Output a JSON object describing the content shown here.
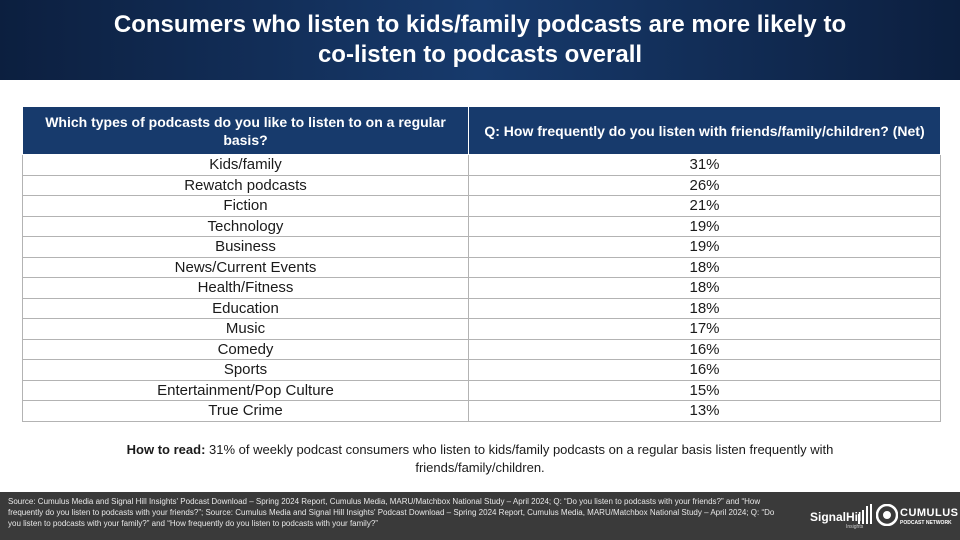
{
  "header": {
    "title": "Consumers who listen to kids/family podcasts are more likely to co-listen to podcasts overall"
  },
  "table": {
    "headers": [
      "Which types of podcasts do you like to listen to on a regular basis?",
      "Q: How frequently do you listen with friends/family/children? (Net)"
    ],
    "rows": [
      [
        "Kids/family",
        "31%"
      ],
      [
        "Rewatch podcasts",
        "26%"
      ],
      [
        "Fiction",
        "21%"
      ],
      [
        "Technology",
        "19%"
      ],
      [
        "Business",
        "19%"
      ],
      [
        "News/Current Events",
        "18%"
      ],
      [
        "Health/Fitness",
        "18%"
      ],
      [
        "Education",
        "18%"
      ],
      [
        "Music",
        "17%"
      ],
      [
        "Comedy",
        "16%"
      ],
      [
        "Sports",
        "16%"
      ],
      [
        "Entertainment/Pop Culture",
        "15%"
      ],
      [
        "True Crime",
        "13%"
      ]
    ]
  },
  "how_to_read": {
    "label": "How to read:",
    "text": " 31% of weekly podcast consumers who listen to kids/family podcasts on a regular basis listen frequently with friends/family/children."
  },
  "footer": {
    "source": "Source: Cumulus Media and Signal Hill Insights' Podcast Download – Spring 2024 Report, Cumulus Media, MARU/Matchbox National Study – April 2024; Q: “Do you listen to podcasts with your friends?” and “How frequently do you listen to podcasts with your friends?”; Source: Cumulus Media and Signal Hill Insights' Podcast Download – Spring 2024 Report, Cumulus Media, MARU/Matchbox National Study – April 2024; Q: “Do you listen to podcasts with your family?” and “How frequently do you listen to podcasts with your family?”",
    "logo_signal_name": "SignalHill",
    "logo_signal_sub": "Insights",
    "logo_cumulus_name": "CUMULUS",
    "logo_cumulus_sub": "PODCAST NETWORK"
  },
  "colors": {
    "header_bg": "#0c1f3f",
    "table_header_bg": "#173a6c",
    "footer_bg": "#3a3a3a"
  }
}
